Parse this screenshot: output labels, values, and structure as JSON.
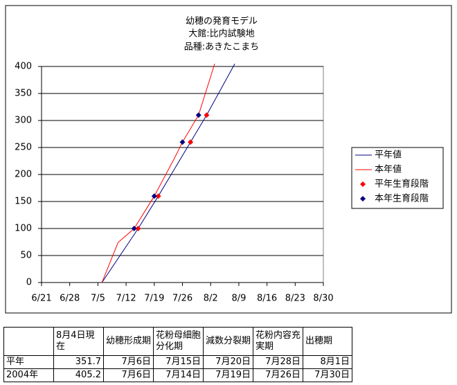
{
  "chart_data": {
    "type": "line",
    "title": [
      "幼穂の発育モデル",
      "大館:比内試験地",
      "品種:あきたこまち"
    ],
    "xlim": [
      "6/21",
      "8/30"
    ],
    "xticks": [
      "6/21",
      "6/28",
      "7/5",
      "7/12",
      "7/19",
      "7/26",
      "8/2",
      "8/9",
      "8/16",
      "8/23",
      "8/30"
    ],
    "ylim": [
      0,
      400
    ],
    "yticks": [
      0,
      50,
      100,
      150,
      200,
      250,
      300,
      350,
      400
    ],
    "grid": true,
    "legend": "right",
    "series": [
      {
        "name": "平年値",
        "color": "#000080",
        "marker": "none",
        "x": [
          "7/6",
          "7/15",
          "7/20",
          "7/28",
          "8/1",
          "8/8"
        ],
        "values": [
          0,
          100,
          160,
          260,
          310,
          405
        ]
      },
      {
        "name": "本年値",
        "color": "#ff0000",
        "marker": "none",
        "x": [
          "7/6",
          "7/10",
          "7/14",
          "7/19",
          "7/24",
          "7/26",
          "7/30",
          "8/3"
        ],
        "values": [
          0,
          74,
          100,
          160,
          230,
          260,
          310,
          405
        ]
      },
      {
        "name": "平年生育段階",
        "color": "#ff0000",
        "marker": "diamond",
        "x": [
          "7/15",
          "7/20",
          "7/28",
          "8/1"
        ],
        "values": [
          100,
          160,
          260,
          310
        ]
      },
      {
        "name": "本年生育段階",
        "color": "#000080",
        "marker": "diamond",
        "x": [
          "7/14",
          "7/19",
          "7/26",
          "7/30"
        ],
        "values": [
          100,
          160,
          260,
          310
        ]
      }
    ]
  },
  "table": {
    "header": [
      "8月4日現在",
      "幼穂形成期",
      "花粉母細胞分化期",
      "減数分裂期",
      "花粉内容充実期",
      "出穂期"
    ],
    "rows": [
      [
        "平年",
        "351.7",
        "7月6日",
        "7月15日",
        "7月20日",
        "7月28日",
        "8月1日"
      ],
      [
        "2004年",
        "405.2",
        "7月6日",
        "7月14日",
        "7月19日",
        "7月26日",
        "7月30日"
      ]
    ]
  }
}
